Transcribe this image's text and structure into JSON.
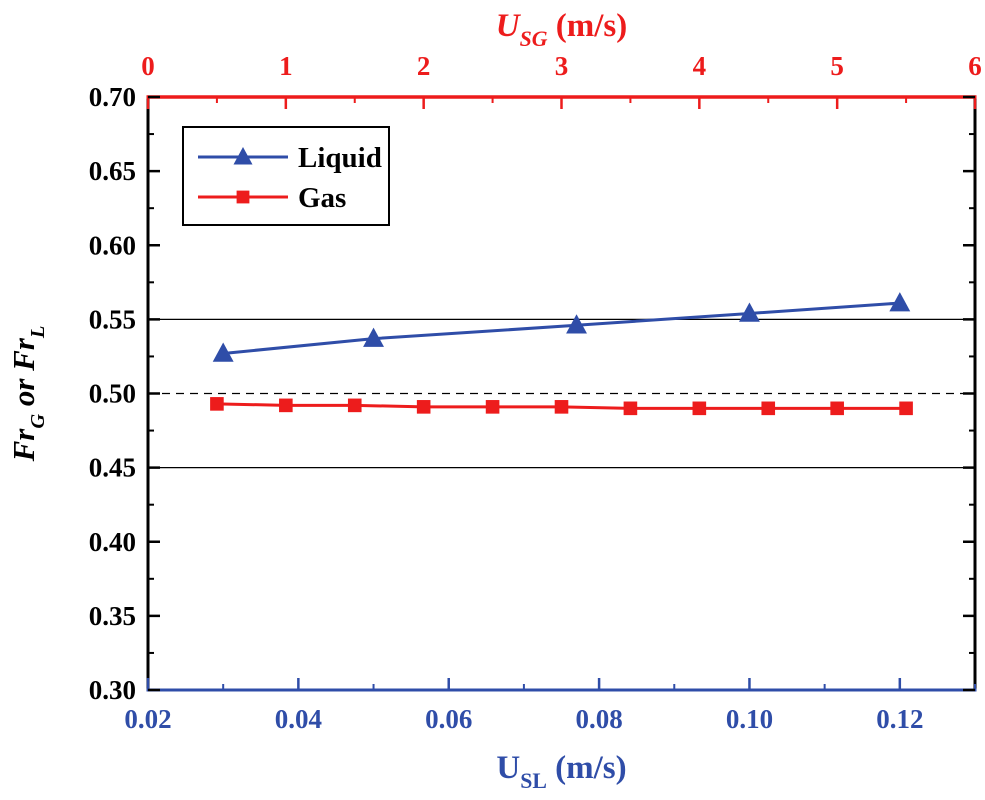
{
  "chart_data": {
    "type": "line",
    "title": "",
    "legend": {
      "position": "top-left",
      "entries": [
        "Liquid",
        "Gas"
      ]
    },
    "y_axis": {
      "min": 0.3,
      "max": 0.7,
      "major_ticks": [
        0.3,
        0.35,
        0.4,
        0.45,
        0.5,
        0.55,
        0.6,
        0.65,
        0.7
      ],
      "major_tick_labels": [
        "0.30",
        "0.35",
        "0.40",
        "0.45",
        "0.50",
        "0.55",
        "0.60",
        "0.65",
        "0.70"
      ],
      "minor_step": 0.025,
      "color": "#000000",
      "label_parts": [
        {
          "t": "Fr",
          "italic": true
        },
        {
          "t": "G",
          "sub": true,
          "italic": true
        },
        {
          "t": " or Fr",
          "italic": true
        },
        {
          "t": "L",
          "sub": true,
          "italic": true
        }
      ]
    },
    "bottom_axis": {
      "min": 0.02,
      "max": 0.13,
      "major_ticks": [
        0.02,
        0.04,
        0.06,
        0.08,
        0.1,
        0.12
      ],
      "major_tick_labels": [
        "0.02",
        "0.04",
        "0.06",
        "0.08",
        "0.10",
        "0.12"
      ],
      "minor_step": 0.01,
      "color": "#2f4da8",
      "label_parts": [
        {
          "t": "U"
        },
        {
          "t": "SL",
          "sub": true
        },
        {
          "t": "  (m/s)"
        }
      ]
    },
    "top_axis": {
      "min": 0,
      "max": 6,
      "major_ticks": [
        0,
        1,
        2,
        3,
        4,
        5,
        6
      ],
      "major_tick_labels": [
        "0",
        "1",
        "2",
        "3",
        "4",
        "5",
        "6"
      ],
      "minor_step": 0.5,
      "color": "#ed1c1c",
      "label_parts": [
        {
          "t": "U",
          "italic": true
        },
        {
          "t": "SG",
          "sub": true,
          "italic": true
        },
        {
          "t": "  (m/s)",
          "italic": false
        }
      ]
    },
    "reference_lines": [
      {
        "y": 0.55,
        "style": "solid"
      },
      {
        "y": 0.5,
        "style": "dashed"
      },
      {
        "y": 0.45,
        "style": "solid"
      }
    ],
    "series": [
      {
        "name": "Liquid",
        "axis": "bottom",
        "color": "#2f4da8",
        "marker": "triangle",
        "x": [
          0.03,
          0.05,
          0.077,
          0.1,
          0.12
        ],
        "y": [
          0.527,
          0.537,
          0.546,
          0.554,
          0.561
        ]
      },
      {
        "name": "Gas",
        "axis": "top",
        "color": "#ed1c1c",
        "marker": "square",
        "x": [
          0.5,
          1.0,
          1.5,
          2.0,
          2.5,
          3.0,
          3.5,
          4.0,
          4.5,
          5.0,
          5.5
        ],
        "y": [
          0.493,
          0.492,
          0.492,
          0.491,
          0.491,
          0.491,
          0.49,
          0.49,
          0.49,
          0.49,
          0.49
        ]
      }
    ]
  }
}
